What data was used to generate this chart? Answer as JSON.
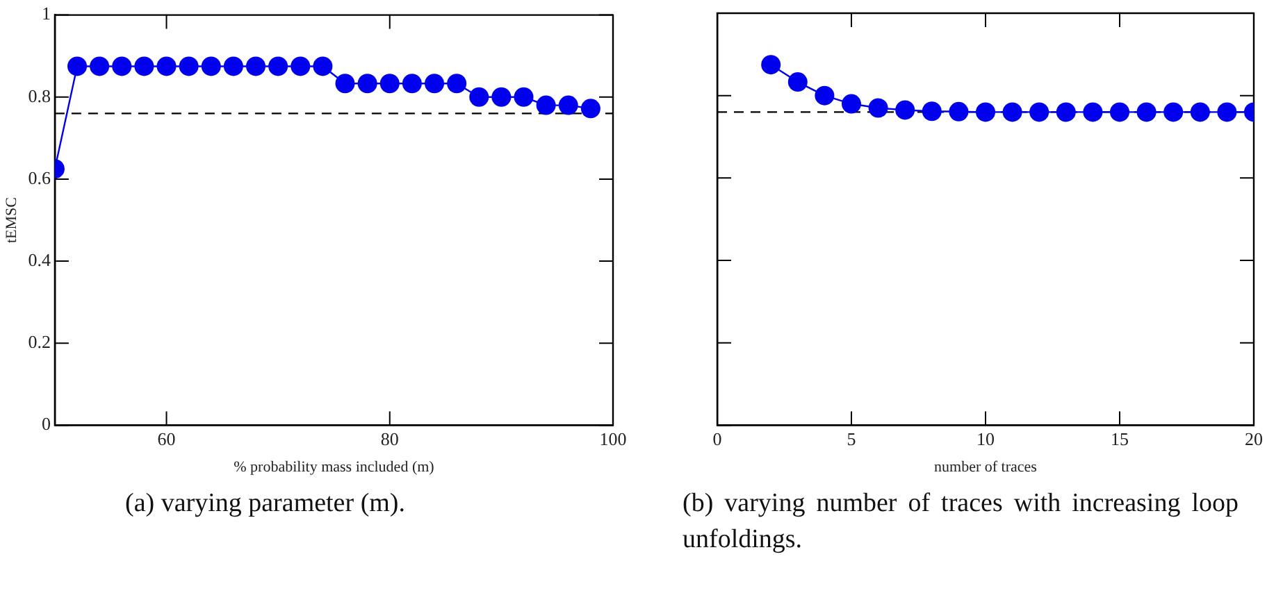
{
  "chart_data": [
    {
      "type": "line",
      "x": [
        50,
        52,
        54,
        56,
        58,
        60,
        62,
        64,
        66,
        68,
        70,
        72,
        74,
        76,
        78,
        80,
        82,
        84,
        86,
        88,
        90,
        92,
        94,
        96,
        98
      ],
      "series": [
        {
          "color": "#0000ee",
          "values": [
            0.625,
            0.875,
            0.875,
            0.875,
            0.875,
            0.875,
            0.875,
            0.875,
            0.875,
            0.875,
            0.875,
            0.875,
            0.875,
            0.833,
            0.833,
            0.833,
            0.833,
            0.833,
            0.833,
            0.8,
            0.8,
            0.8,
            0.78,
            0.78,
            0.772
          ]
        }
      ],
      "xlim": [
        50,
        100
      ],
      "xticks": [
        60,
        80,
        100
      ],
      "ylim": [
        0,
        1
      ],
      "yticks": [
        0,
        0.2,
        0.4,
        0.6,
        0.8,
        1
      ],
      "xlabel": "% probability mass included (m)",
      "ylabel": "tEMSC",
      "marker": "circle",
      "line_style": "solid",
      "grid": false,
      "legend": false,
      "ref_lines": [
        {
          "axis": "y",
          "value": 0.76,
          "line_style": "dashed",
          "color": "#000000"
        }
      ],
      "annotations": [
        "(a) varying parameter (m)."
      ]
    },
    {
      "type": "line",
      "x": [
        2,
        3,
        4,
        5,
        6,
        7,
        8,
        9,
        10,
        11,
        12,
        13,
        14,
        15,
        16,
        17,
        18,
        19,
        20
      ],
      "series": [
        {
          "color": "#0000ee",
          "values": [
            0.875,
            0.833,
            0.8,
            0.78,
            0.77,
            0.765,
            0.762,
            0.761,
            0.76,
            0.76,
            0.76,
            0.76,
            0.76,
            0.76,
            0.76,
            0.76,
            0.76,
            0.76,
            0.76
          ]
        }
      ],
      "xlim": [
        0,
        20
      ],
      "xticks": [
        0,
        5,
        10,
        15,
        20
      ],
      "ylim": [
        0,
        1
      ],
      "yticks": [
        0,
        0.2,
        0.4,
        0.6,
        0.8,
        1
      ],
      "tick_labels": "x",
      "xlabel": "number of traces",
      "marker": "circle",
      "line_style": "solid",
      "grid": false,
      "legend": false,
      "ref_lines": [
        {
          "axis": "y",
          "value": 0.76,
          "line_style": "dashed",
          "color": "#000000"
        }
      ],
      "annotations": [
        "(b) varying number of traces with increasing loop unfoldings."
      ]
    }
  ]
}
